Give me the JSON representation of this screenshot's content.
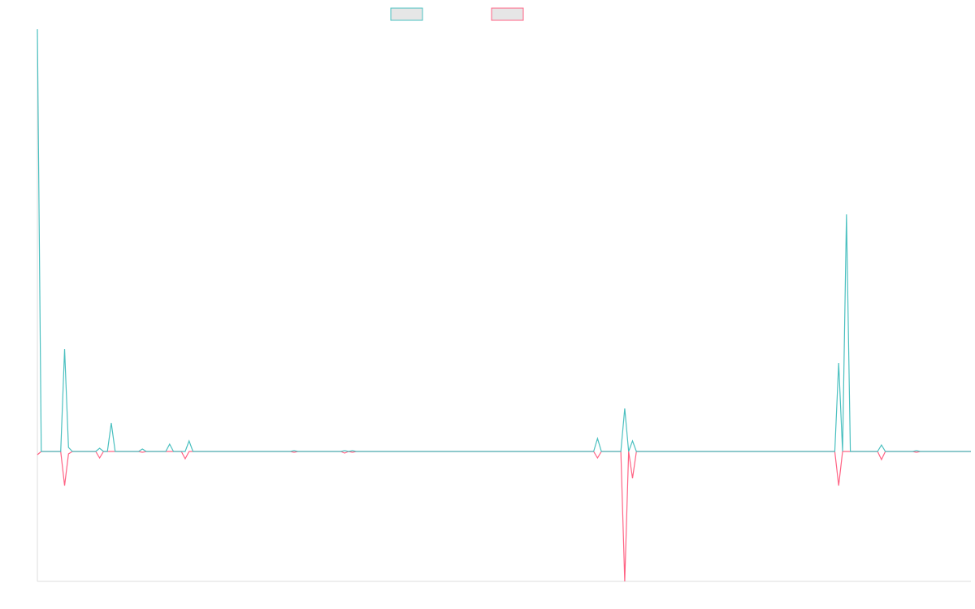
{
  "chart_data": {
    "type": "line",
    "ylim": [
      -160,
      520
    ],
    "series": [
      {
        "color": "#4bc0c0",
        "values": [
          520,
          0,
          0,
          0,
          0,
          0,
          0,
          126,
          5,
          0,
          0,
          0,
          0,
          0,
          0,
          0,
          4,
          0,
          0,
          35,
          0,
          0,
          0,
          0,
          0,
          0,
          0,
          3,
          0,
          0,
          0,
          0,
          0,
          0,
          9,
          0,
          0,
          0,
          0,
          13,
          0,
          0,
          0,
          0,
          0,
          0,
          0,
          0,
          0,
          0,
          0,
          0,
          0,
          0,
          0,
          0,
          0,
          0,
          0,
          0,
          0,
          0,
          0,
          0,
          0,
          0,
          1,
          0,
          0,
          0,
          0,
          0,
          0,
          0,
          0,
          0,
          0,
          0,
          0,
          1,
          0,
          1,
          0,
          0,
          0,
          0,
          0,
          0,
          0,
          0,
          0,
          0,
          0,
          0,
          0,
          0,
          0,
          0,
          0,
          0,
          0,
          0,
          0,
          0,
          0,
          0,
          0,
          0,
          0,
          0,
          0,
          0,
          0,
          0,
          0,
          0,
          0,
          0,
          0,
          0,
          0,
          0,
          0,
          0,
          0,
          0,
          0,
          0,
          0,
          0,
          0,
          0,
          0,
          0,
          0,
          0,
          0,
          0,
          0,
          0,
          0,
          0,
          0,
          0,
          16,
          0,
          0,
          0,
          0,
          0,
          0,
          53,
          0,
          13,
          0,
          0,
          0,
          0,
          0,
          0,
          0,
          0,
          0,
          0,
          0,
          0,
          0,
          0,
          0,
          0,
          0,
          0,
          0,
          0,
          0,
          0,
          0,
          0,
          0,
          0,
          0,
          0,
          0,
          0,
          0,
          0,
          0,
          0,
          0,
          0,
          0,
          0,
          0,
          0,
          0,
          0,
          0,
          0,
          0,
          0,
          0,
          0,
          0,
          0,
          0,
          0,
          109,
          0,
          292,
          0,
          0,
          0,
          0,
          0,
          0,
          0,
          0,
          8,
          0,
          0,
          0,
          0,
          0,
          0,
          0,
          0,
          1,
          0,
          0,
          0,
          0,
          0,
          0,
          0,
          0,
          0,
          0,
          0,
          0,
          0,
          0
        ]
      },
      {
        "color": "#ff6384",
        "values": [
          -4,
          0,
          0,
          0,
          0,
          0,
          0,
          -42,
          -3,
          0,
          0,
          0,
          0,
          0,
          0,
          0,
          -8,
          0,
          0,
          0,
          0,
          0,
          0,
          0,
          0,
          0,
          0,
          -1,
          0,
          0,
          0,
          0,
          0,
          0,
          0,
          0,
          0,
          0,
          -9,
          0,
          0,
          0,
          0,
          0,
          0,
          0,
          0,
          0,
          0,
          0,
          0,
          0,
          0,
          0,
          0,
          0,
          0,
          0,
          0,
          0,
          0,
          0,
          0,
          0,
          0,
          0,
          -1,
          0,
          0,
          0,
          0,
          0,
          0,
          0,
          0,
          0,
          0,
          0,
          0,
          -2,
          0,
          -1,
          0,
          0,
          0,
          0,
          0,
          0,
          0,
          0,
          0,
          0,
          0,
          0,
          0,
          0,
          0,
          0,
          0,
          0,
          0,
          0,
          0,
          0,
          0,
          0,
          0,
          0,
          0,
          0,
          0,
          0,
          0,
          0,
          0,
          0,
          0,
          0,
          0,
          0,
          0,
          0,
          0,
          0,
          0,
          0,
          0,
          0,
          0,
          0,
          0,
          0,
          0,
          0,
          0,
          0,
          0,
          0,
          0,
          0,
          0,
          0,
          0,
          0,
          -8,
          0,
          0,
          0,
          0,
          0,
          0,
          -160,
          0,
          -33,
          0,
          0,
          0,
          0,
          0,
          0,
          0,
          0,
          0,
          0,
          0,
          0,
          0,
          0,
          0,
          0,
          0,
          0,
          0,
          0,
          0,
          0,
          0,
          0,
          0,
          0,
          0,
          0,
          0,
          0,
          0,
          0,
          0,
          0,
          0,
          0,
          0,
          0,
          0,
          0,
          0,
          0,
          0,
          0,
          0,
          0,
          0,
          0,
          0,
          0,
          0,
          0,
          -42,
          0,
          0,
          0,
          0,
          0,
          0,
          0,
          0,
          0,
          0,
          -10,
          0,
          0,
          0,
          0,
          0,
          0,
          0,
          0,
          -1,
          0,
          0,
          0,
          0,
          0,
          0,
          0,
          0,
          0,
          0,
          0,
          0,
          0,
          0
        ]
      }
    ]
  }
}
